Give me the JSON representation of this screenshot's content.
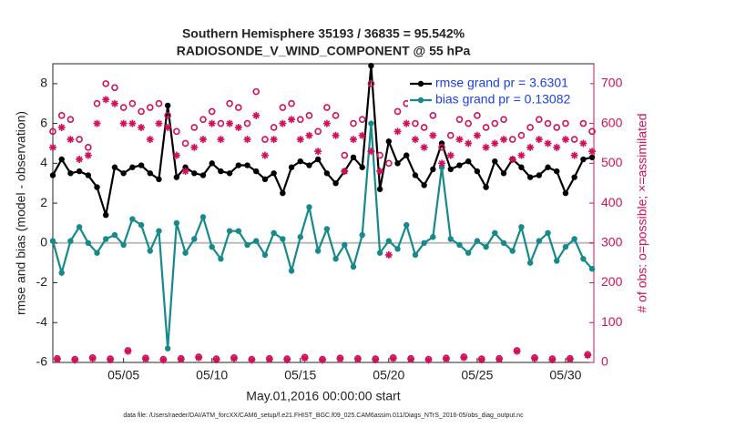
{
  "chart_data": {
    "type": "line",
    "title": "Southern Hemisphere 35193 / 36835 = 95.542%",
    "subtitle": "RADIOSONDE_V_WIND_COMPONENT @ 55 hPa",
    "xlabel": "May.01,2016 00:00:00 start",
    "ylabel": "rmse and bias (model - observation)",
    "y2label": "# of obs: o=possible; ×=assimilated",
    "footnote": "data file: /Users/raeder/DAI/ATM_forcXX/CAM6_setup/f.e21.FHIST_BGC.f09_025.CAM6assim.011/Diags_NTrS_2016-05/obs_diag_output.nc",
    "xlim": [
      1,
      31.6
    ],
    "xticks": [
      {
        "value": 5,
        "label": "05/05"
      },
      {
        "value": 10,
        "label": "05/10"
      },
      {
        "value": 15,
        "label": "05/15"
      },
      {
        "value": 20,
        "label": "05/20"
      },
      {
        "value": 25,
        "label": "05/25"
      },
      {
        "value": 30,
        "label": "05/30"
      }
    ],
    "ylim": [
      -6,
      9
    ],
    "yticks": [
      -6,
      -4,
      -2,
      0,
      2,
      4,
      6,
      8
    ],
    "y2lim": [
      0,
      750
    ],
    "y2ticks": [
      0,
      100,
      200,
      300,
      400,
      500,
      600,
      700
    ],
    "y2color": "#d0105a",
    "legend_position": "upper right",
    "legend_text_color": "#1c3fe0",
    "x": [
      1,
      1.5,
      2,
      2.5,
      3,
      3.5,
      4,
      4.5,
      5,
      5.5,
      6,
      6.5,
      7,
      7.5,
      8,
      8.5,
      9,
      9.5,
      10,
      10.5,
      11,
      11.5,
      12,
      12.5,
      13,
      13.5,
      14,
      14.5,
      15,
      15.5,
      16,
      16.5,
      17,
      17.5,
      18,
      18.5,
      19,
      19.5,
      20,
      20.5,
      21,
      21.5,
      22,
      22.5,
      23,
      23.5,
      24,
      24.5,
      25,
      25.5,
      26,
      26.5,
      27,
      27.5,
      28,
      28.5,
      29,
      29.5,
      30,
      30.5,
      31,
      31.5
    ],
    "series": [
      {
        "name": "rmse grand pr = 3.6301",
        "color": "#000000",
        "marker": "dot",
        "line": true,
        "values": [
          3.4,
          4.2,
          3.5,
          3.6,
          3.4,
          2.8,
          1.4,
          3.8,
          3.5,
          3.8,
          3.9,
          3.5,
          3.2,
          6.9,
          3.3,
          3.8,
          3.5,
          3.4,
          4.0,
          3.6,
          3.5,
          3.9,
          3.9,
          3.6,
          3.2,
          3.5,
          2.5,
          3.8,
          4.1,
          3.9,
          4.2,
          3.5,
          3.0,
          3.6,
          4.3,
          3.8,
          8.9,
          2.7,
          5.1,
          4.0,
          4.4,
          3.4,
          2.9,
          3.7,
          5.0,
          3.7,
          3.9,
          4.1,
          3.6,
          2.8,
          4.1,
          3.5,
          4.2,
          3.8,
          3.3,
          3.4,
          3.8,
          3.6,
          2.5,
          3.3,
          4.2,
          4.3
        ]
      },
      {
        "name": "bias grand pr = 0.13082",
        "color": "#16898a",
        "marker": "dot",
        "line": true,
        "values": [
          0.1,
          -1.5,
          0.1,
          0.8,
          0.0,
          -0.5,
          0.2,
          0.4,
          -0.1,
          1.2,
          0.9,
          -0.4,
          0.6,
          -5.3,
          1.0,
          -0.5,
          0.2,
          1.3,
          -0.2,
          -0.8,
          0.6,
          0.6,
          -0.1,
          0.1,
          -0.6,
          0.5,
          0.2,
          -1.4,
          0.3,
          1.8,
          -0.4,
          0.7,
          -0.8,
          -0.1,
          -1.2,
          0.4,
          6.0,
          -0.5,
          0.1,
          -0.3,
          0.9,
          -0.6,
          0.0,
          0.3,
          3.8,
          0.2,
          -0.1,
          -0.5,
          0.1,
          -0.2,
          0.5,
          0.0,
          -0.4,
          0.8,
          -1.0,
          0.1,
          0.5,
          -0.9,
          -0.2,
          0.2,
          -0.8,
          -1.3
        ]
      },
      {
        "color": "#d0105a",
        "marker": "circle",
        "line": false,
        "axis": "y2",
        "values": [
          580,
          620,
          610,
          560,
          540,
          650,
          700,
          690,
          640,
          650,
          630,
          640,
          650,
          620,
          580,
          550,
          590,
          610,
          630,
          600,
          650,
          640,
          600,
          680,
          560,
          590,
          640,
          650,
          610,
          620,
          580,
          640,
          620,
          520,
          600,
          610,
          700,
          520,
          500,
          630,
          650,
          600,
          590,
          620,
          540,
          570,
          610,
          600,
          620,
          590,
          600,
          610,
          560,
          570,
          590,
          610,
          600,
          590,
          600,
          560,
          600,
          580
        ]
      },
      {
        "color": "#d0105a",
        "marker": "star",
        "line": false,
        "axis": "y2",
        "values": [
          540,
          590,
          560,
          510,
          520,
          600,
          660,
          650,
          600,
          600,
          590,
          560,
          600,
          590,
          520,
          480,
          540,
          560,
          600,
          560,
          600,
          590,
          560,
          620,
          520,
          560,
          600,
          610,
          560,
          570,
          530,
          600,
          570,
          480,
          560,
          570,
          530,
          480,
          270,
          580,
          600,
          560,
          540,
          570,
          500,
          520,
          560,
          550,
          570,
          540,
          550,
          560,
          510,
          520,
          540,
          560,
          550,
          540,
          560,
          520,
          550,
          530
        ]
      },
      {
        "color": "#d0105a",
        "marker": "circle",
        "line": false,
        "axis": "y2",
        "x": [
          1.25,
          2.25,
          3.25,
          4.25,
          5.25,
          6.25,
          7.25,
          8.25,
          9.25,
          10.25,
          11.25,
          12.25,
          13.25,
          14.25,
          15.25,
          16.25,
          17.25,
          18.25,
          19.25,
          20.25,
          21.25,
          22.25,
          23.25,
          24.25,
          25.25,
          26.25,
          27.25,
          28.25,
          29.25,
          30.25,
          31.25
        ],
        "values": [
          10,
          8,
          12,
          9,
          30,
          11,
          8,
          10,
          14,
          9,
          12,
          8,
          10,
          9,
          13,
          8,
          11,
          10,
          9,
          12,
          10,
          8,
          11,
          14,
          9,
          10,
          30,
          12,
          9,
          10,
          20
        ]
      },
      {
        "color": "#d0105a",
        "marker": "star",
        "line": false,
        "axis": "y2",
        "x": [
          1.25,
          2.25,
          3.25,
          4.25,
          5.25,
          6.25,
          7.25,
          8.25,
          9.25,
          10.25,
          11.25,
          12.25,
          13.25,
          14.25,
          15.25,
          16.25,
          17.25,
          18.25,
          19.25,
          20.25,
          21.25,
          22.25,
          23.25,
          24.25,
          25.25,
          26.25,
          27.25,
          28.25,
          29.25,
          30.25,
          31.25
        ],
        "values": [
          8,
          6,
          10,
          7,
          28,
          9,
          6,
          8,
          12,
          7,
          10,
          6,
          8,
          7,
          11,
          6,
          9,
          8,
          7,
          10,
          8,
          6,
          9,
          12,
          7,
          8,
          28,
          10,
          7,
          8,
          18
        ]
      }
    ]
  }
}
